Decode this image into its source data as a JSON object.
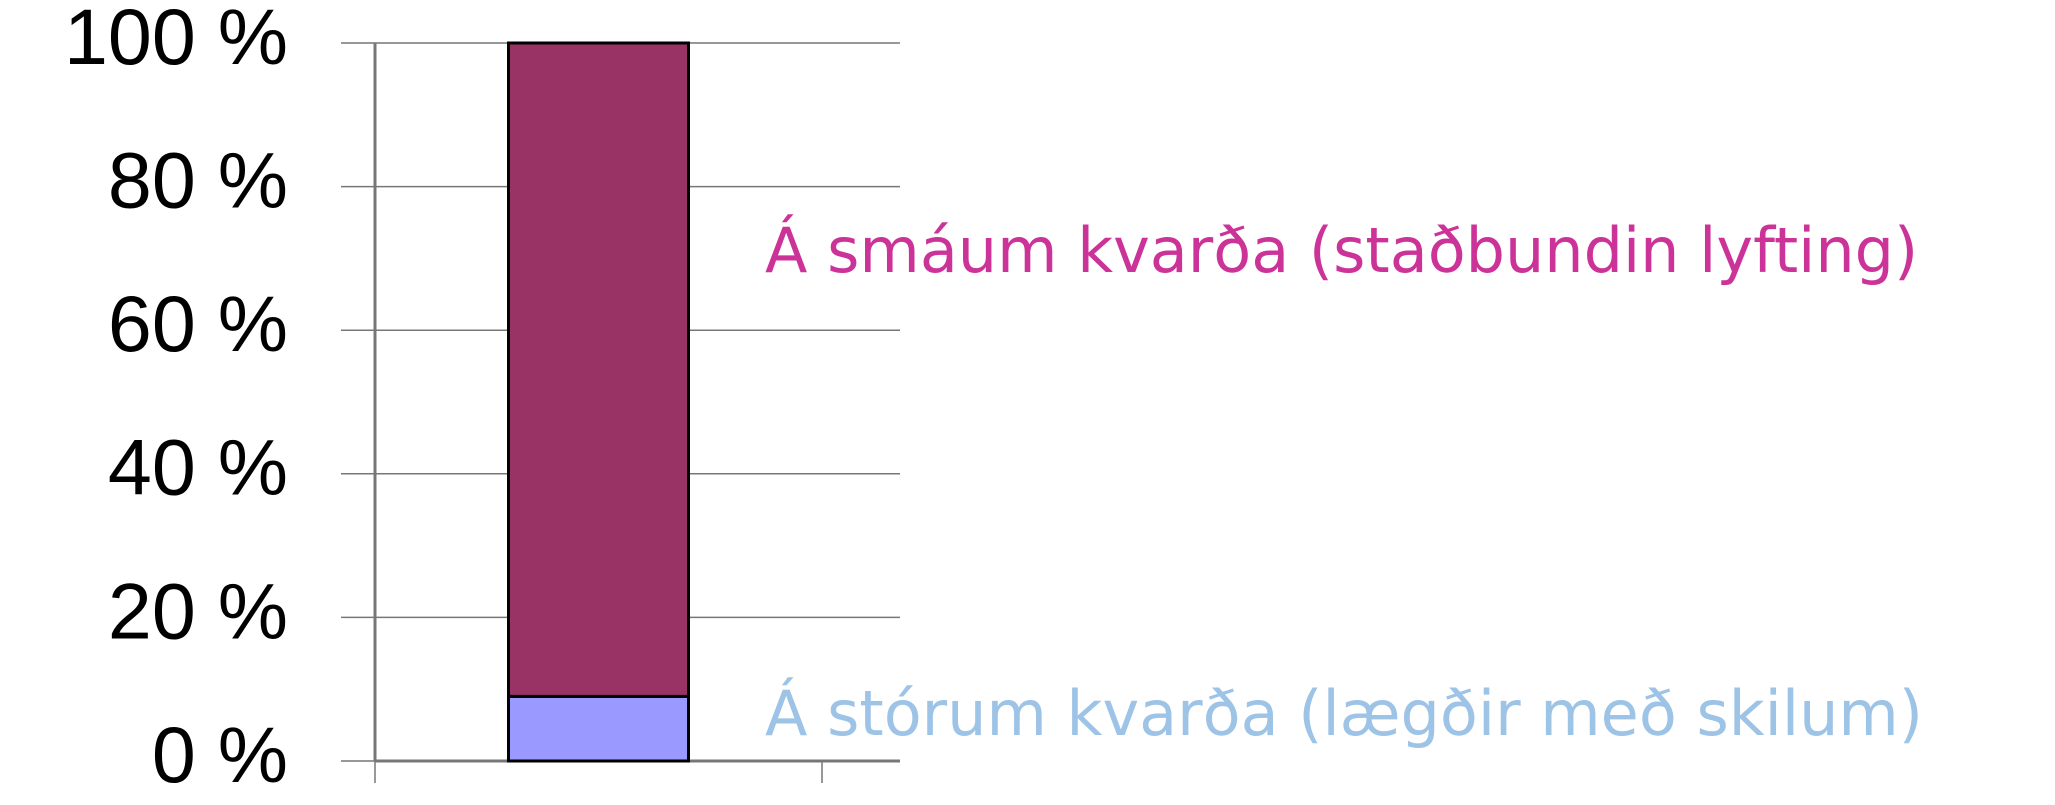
{
  "chart_data": {
    "type": "stacked_bar",
    "categories": [
      null
    ],
    "series": [
      {
        "name": "Á stórum kvarða (lægðir með skilum)",
        "color": "#9999ff",
        "label_color": "#9dc3e6",
        "values": [
          9
        ]
      },
      {
        "name": "Á smáum kvarða (staðbundin lyfting)",
        "color": "#993366",
        "label_color": "#cc3399",
        "values": [
          91
        ]
      }
    ],
    "ylim": [
      0,
      100
    ],
    "yticks": [
      {
        "value": 0,
        "label": "0 %"
      },
      {
        "value": 20,
        "label": "20 %"
      },
      {
        "value": 40,
        "label": "40 %"
      },
      {
        "value": 60,
        "label": "60 %"
      },
      {
        "value": 80,
        "label": "80 %"
      },
      {
        "value": 100,
        "label": "100 %"
      }
    ],
    "grid": true
  }
}
